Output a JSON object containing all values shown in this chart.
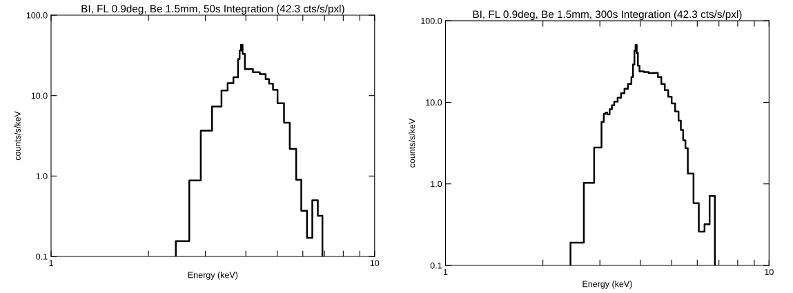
{
  "chart_data": [
    {
      "type": "histogram",
      "title": "BI, FL 0.9deg, Be 1.5mm, 50s Integration (42.3 cts/s/pxl)",
      "xlabel": "Energy (keV)",
      "ylabel": "counts/s/keV",
      "log": "xy",
      "color": "#000000",
      "bins": [
        2.43,
        2.674,
        2.902,
        3.145,
        3.363,
        3.513,
        3.661,
        3.783,
        3.826,
        3.864,
        3.908,
        3.973,
        4.207,
        4.418,
        4.604,
        4.718,
        4.852,
        5.012,
        5.248,
        5.467,
        5.722,
        5.934,
        6.18,
        6.418,
        6.675,
        6.898
      ],
      "values": [
        0.155,
        0.88,
        3.66,
        7.3,
        11.6,
        14.3,
        16.9,
        28.4,
        36.4,
        42.9,
        33,
        21.3,
        19.5,
        18.5,
        16,
        14.1,
        11.8,
        8.05,
        4.61,
        2.17,
        0.9,
        0.37,
        0.17,
        0.5,
        0.32
      ],
      "xlim": [
        1,
        10
      ],
      "ylim": [
        0.1,
        100
      ],
      "xticks": [
        1,
        {
          "value": 2,
          "label": null
        },
        {
          "value": 3,
          "label": null
        },
        {
          "value": 4,
          "label": null
        },
        {
          "value": 5,
          "label": null
        },
        {
          "value": 6,
          "label": null
        },
        {
          "value": 7,
          "label": null
        },
        {
          "value": 8,
          "label": null
        },
        {
          "value": 9,
          "label": null
        },
        10
      ],
      "yticks": [
        0.1,
        {
          "value": 1,
          "label": "1.0"
        },
        {
          "value": 10,
          "label": "10.0"
        },
        {
          "value": 100,
          "label": "100.0"
        }
      ]
    },
    {
      "type": "histogram",
      "title": "BI, FL 0.9deg, Be 1.5mm, 300s Integration (42.3 cts/s/pxl)",
      "xlabel": "Energy (keV)",
      "ylabel": "counts/s/keV",
      "log": "xy",
      "color": "#000000",
      "bins": [
        2.434,
        2.677,
        2.88,
        3.035,
        3.085,
        3.121,
        3.162,
        3.215,
        3.268,
        3.322,
        3.404,
        3.488,
        3.574,
        3.664,
        3.754,
        3.798,
        3.836,
        3.868,
        3.9,
        3.932,
        3.977,
        4.107,
        4.246,
        4.387,
        4.533,
        4.645,
        4.761,
        4.879,
        5.0,
        5.125,
        5.252,
        5.339,
        5.427,
        5.516,
        5.609,
        5.842,
        6.066,
        6.318,
        6.551,
        6.802
      ],
      "values": [
        0.19,
        1.03,
        2.79,
        5.76,
        7.2,
        7.46,
        7.1,
        8.2,
        9.2,
        10.2,
        11.4,
        12.9,
        14.7,
        16.8,
        20.4,
        29.1,
        43,
        50.6,
        40.3,
        28.2,
        24,
        23.5,
        22.8,
        22.9,
        20.4,
        16.8,
        14.1,
        11.7,
        9.7,
        7.7,
        5.95,
        4.59,
        3.43,
        2.73,
        1.34,
        0.58,
        0.26,
        0.32,
        0.71
      ],
      "xlim": [
        1,
        10
      ],
      "ylim": [
        0.1,
        100
      ],
      "xticks": [
        1,
        {
          "value": 2,
          "label": null
        },
        {
          "value": 3,
          "label": null
        },
        {
          "value": 4,
          "label": null
        },
        {
          "value": 5,
          "label": null
        },
        {
          "value": 6,
          "label": null
        },
        {
          "value": 7,
          "label": null
        },
        {
          "value": 8,
          "label": null
        },
        {
          "value": 9,
          "label": null
        },
        10
      ],
      "yticks": [
        0.1,
        {
          "value": 1,
          "label": "1.0"
        },
        {
          "value": 10,
          "label": "10.0"
        },
        {
          "value": 100,
          "label": "100.0"
        }
      ]
    }
  ]
}
